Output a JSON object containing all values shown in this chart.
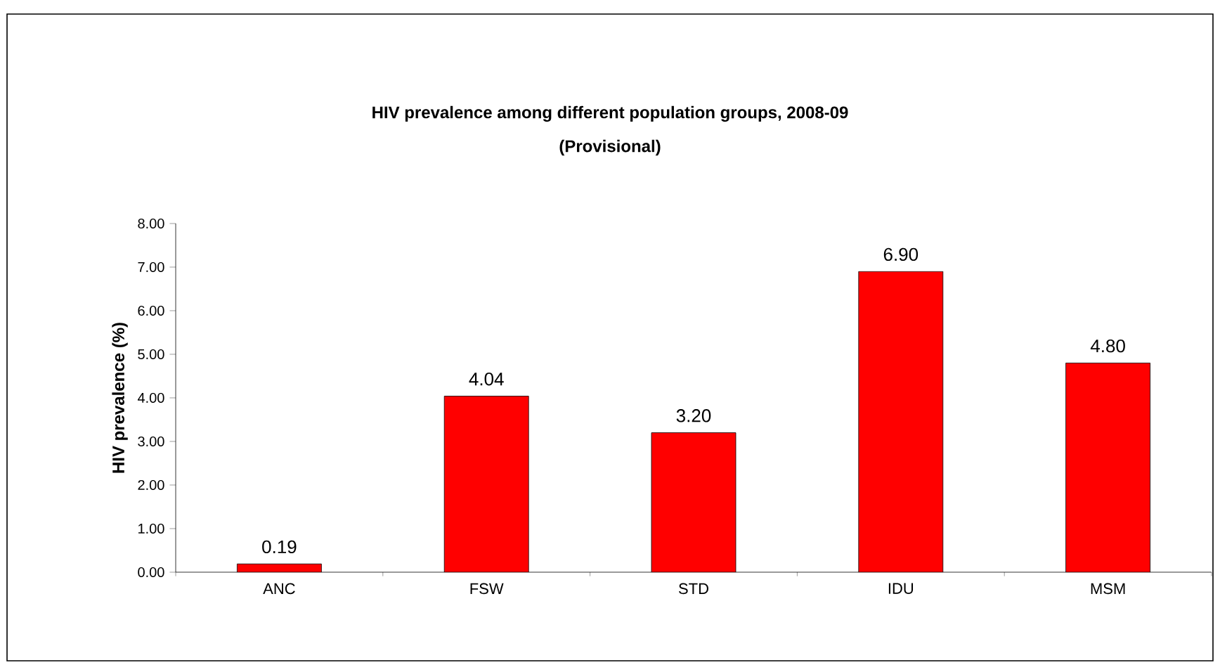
{
  "chart_data": {
    "type": "bar",
    "title": "HIV prevalence among different population groups, 2008-09",
    "subtitle": "(Provisional)",
    "ylabel": "HIV prevalence (%)",
    "categories": [
      "ANC",
      "FSW",
      "STD",
      "IDU",
      "MSM"
    ],
    "values": [
      0.19,
      4.04,
      3.2,
      6.9,
      4.8
    ],
    "value_labels": [
      "0.19",
      "4.04",
      "3.20",
      "6.90",
      "4.80"
    ],
    "color": "#ff0000",
    "ylim": [
      0,
      8
    ],
    "yticks": [
      {
        "value": 0,
        "label": "0.00"
      },
      {
        "value": 1,
        "label": "1.00"
      },
      {
        "value": 2,
        "label": "2.00"
      },
      {
        "value": 3,
        "label": "3.00"
      },
      {
        "value": 4,
        "label": "4.00"
      },
      {
        "value": 5,
        "label": "5.00"
      },
      {
        "value": 6,
        "label": "6.00"
      },
      {
        "value": 7,
        "label": "7.00"
      },
      {
        "value": 8,
        "label": "8.00"
      }
    ],
    "grid": false
  }
}
